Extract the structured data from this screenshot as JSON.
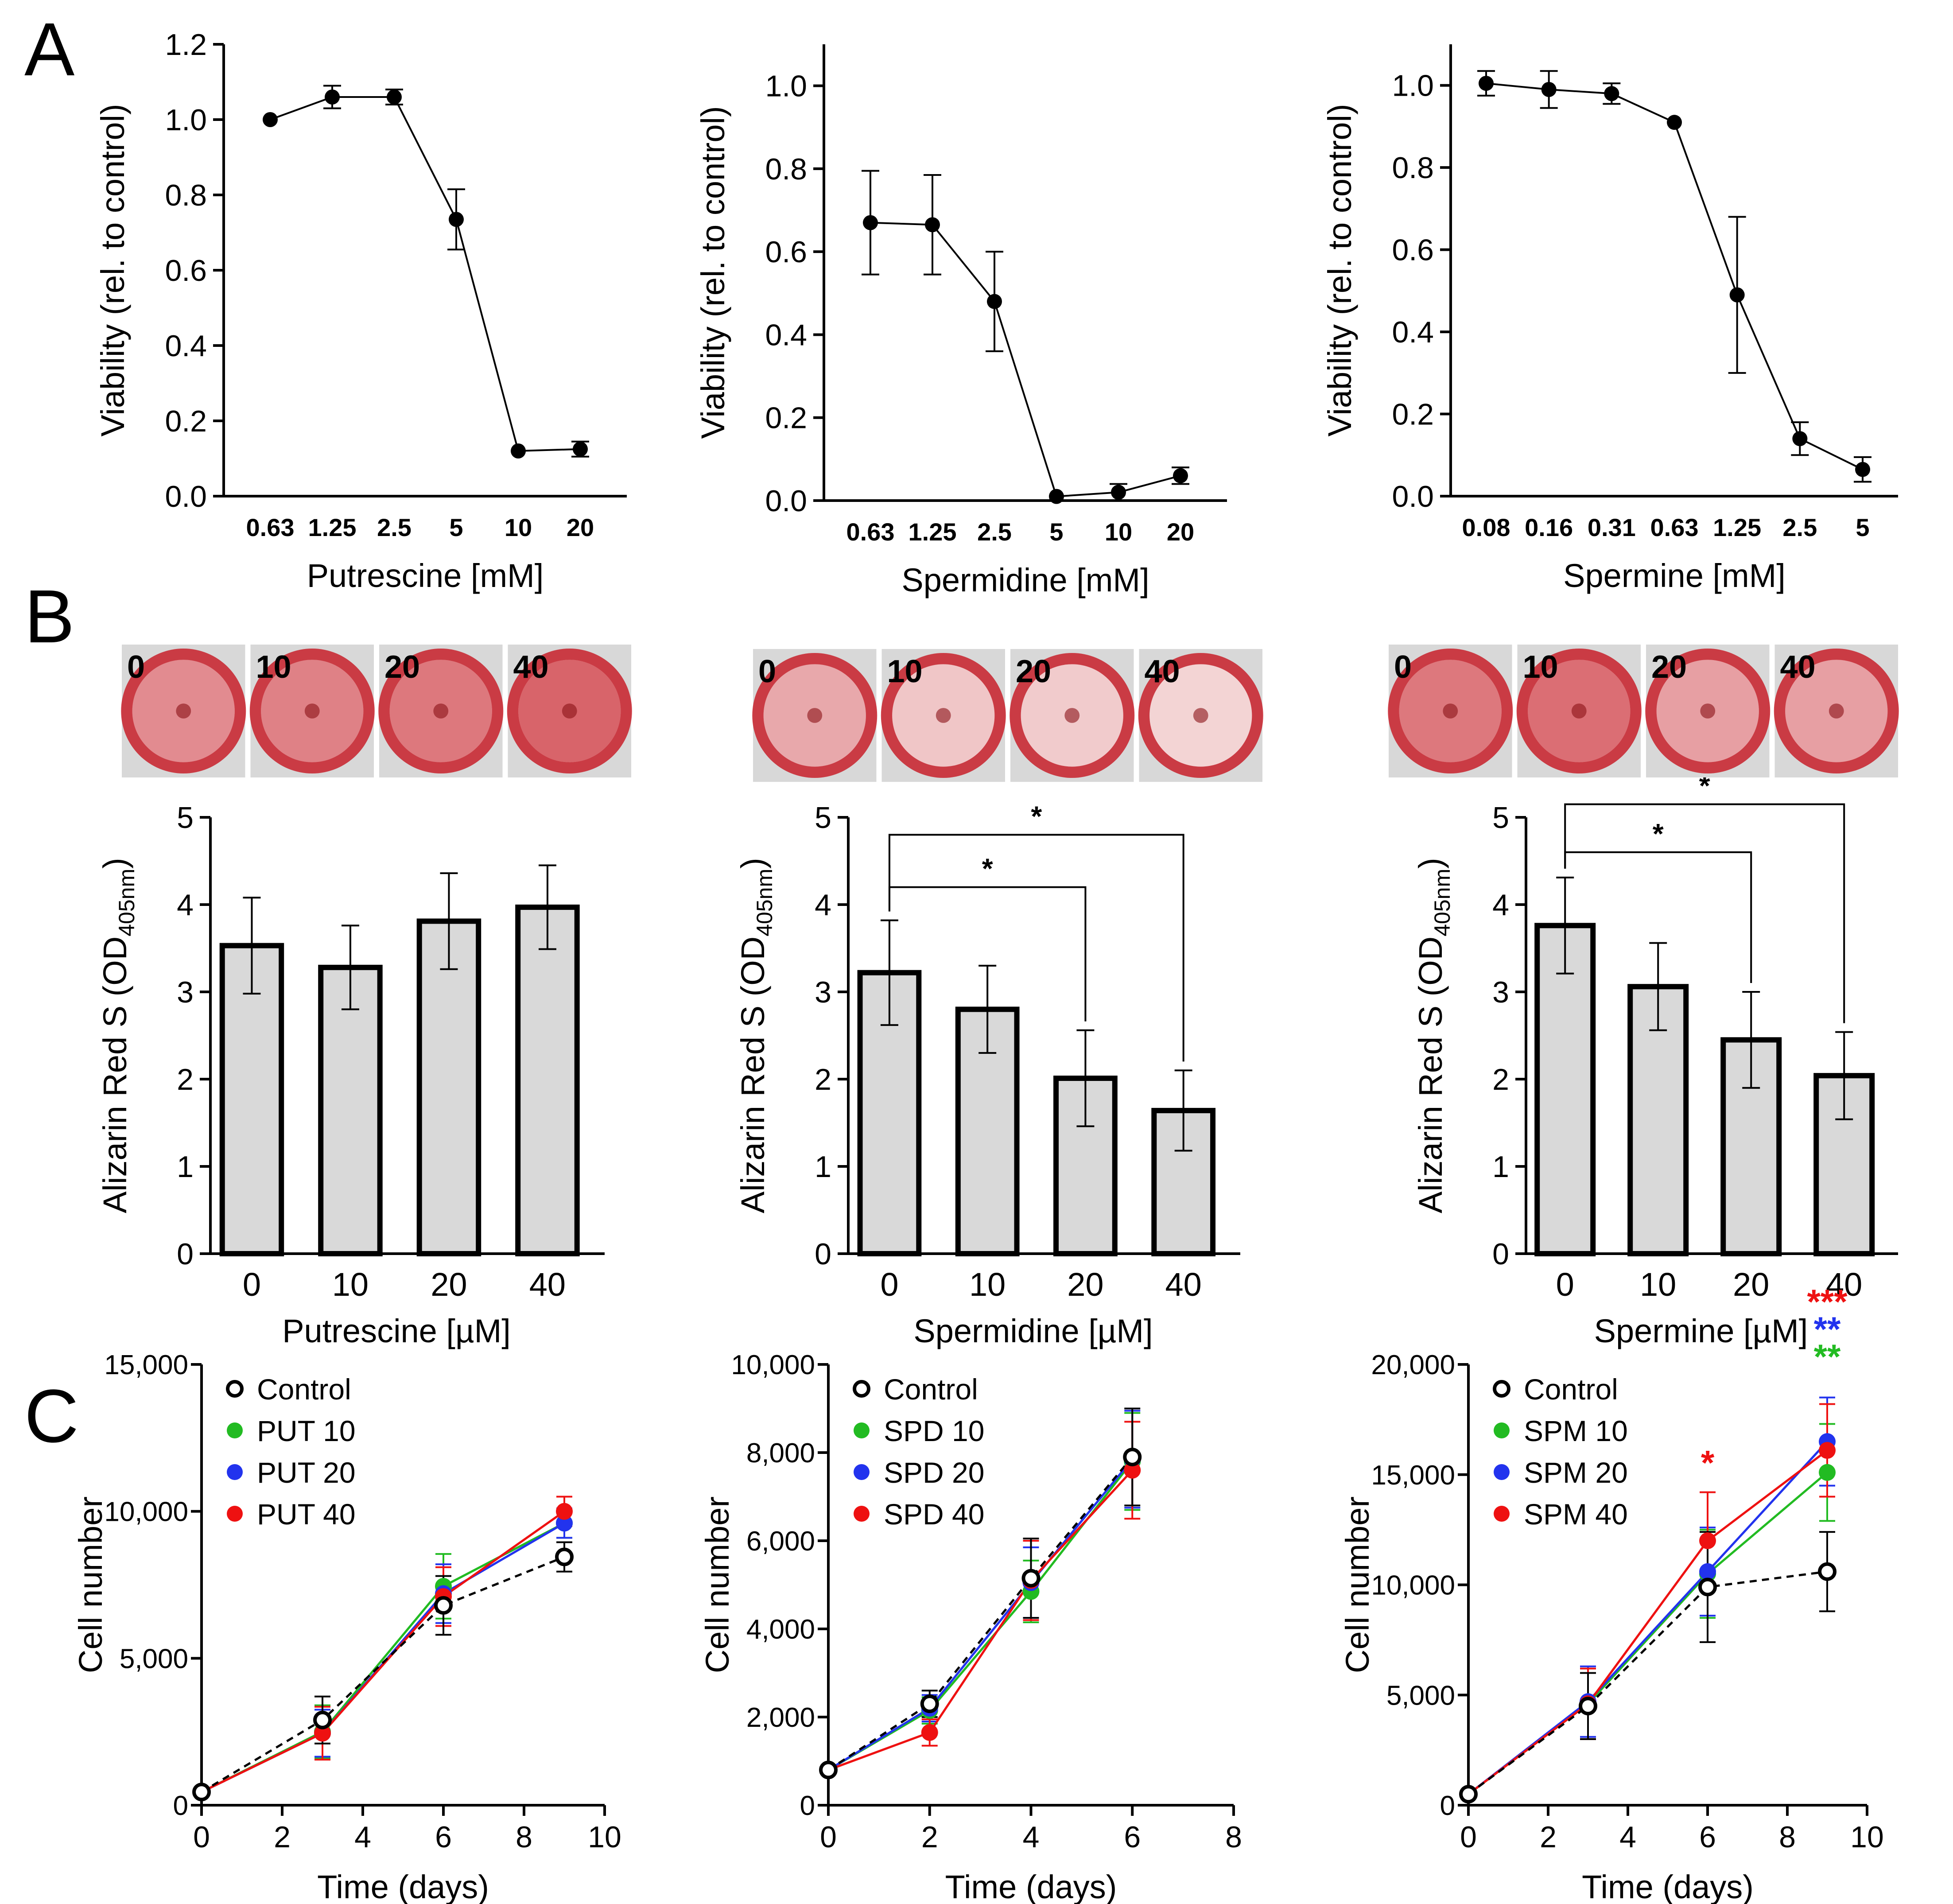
{
  "panel_labels": [
    "A",
    "B",
    "C"
  ],
  "colors": {
    "line": "#000000",
    "bar_fill": "#d9d9d9",
    "put_control": "#000000",
    "series_10": "#22bb22",
    "series_20": "#2233ee",
    "series_40": "#ee1111",
    "dish_stain": "#c8202a"
  },
  "chart_data": [
    {
      "id": "A1",
      "type": "line",
      "categories": [
        "0.63",
        "1.25",
        "2.5",
        "5",
        "10",
        "20"
      ],
      "values": [
        1.0,
        1.06,
        1.06,
        0.735,
        0.12,
        0.125
      ],
      "errors": [
        0.0,
        0.03,
        0.02,
        0.08,
        0.0,
        0.02
      ],
      "xlabel": "Putrescine [mM]",
      "ylabel": "Viability (rel. to control)",
      "ylim": [
        0,
        1.2
      ],
      "yticks": [
        "0.0",
        "0.2",
        "0.4",
        "0.6",
        "0.8",
        "1.0",
        "1.2"
      ]
    },
    {
      "id": "A2",
      "type": "line",
      "categories": [
        "0.63",
        "1.25",
        "2.5",
        "5",
        "10",
        "20"
      ],
      "values": [
        0.67,
        0.665,
        0.48,
        0.01,
        0.02,
        0.06
      ],
      "errors": [
        0.125,
        0.12,
        0.12,
        0.0,
        0.02,
        0.02
      ],
      "xlabel": "Spermidine [mM]",
      "ylabel": "Viability (rel. to control)",
      "ylim": [
        0,
        1.1
      ],
      "yticks": [
        "0.0",
        "0.2",
        "0.4",
        "0.6",
        "0.8",
        "1.0"
      ]
    },
    {
      "id": "A3",
      "type": "line",
      "categories": [
        "0.08",
        "0.16",
        "0.31",
        "0.63",
        "1.25",
        "2.5",
        "5"
      ],
      "values": [
        1.005,
        0.99,
        0.98,
        0.91,
        0.49,
        0.14,
        0.065
      ],
      "errors": [
        0.03,
        0.045,
        0.025,
        0.0,
        0.19,
        0.04,
        0.03
      ],
      "xlabel": "Spermine [mM]",
      "ylabel": "Viability (rel. to control)",
      "ylim": [
        0,
        1.1
      ],
      "yticks": [
        "0.0",
        "0.2",
        "0.4",
        "0.6",
        "0.8",
        "1.0"
      ]
    },
    {
      "id": "B1",
      "type": "bar",
      "categories": [
        "0",
        "10",
        "20",
        "40"
      ],
      "values": [
        3.53,
        3.28,
        3.81,
        3.97
      ],
      "errors": [
        0.55,
        0.48,
        0.55,
        0.48
      ],
      "xlabel": "Putrescine [µM]",
      "ylabel_parts": [
        "Alizarin  Red S (OD",
        "405nm",
        ")"
      ],
      "ylim": [
        0,
        5
      ],
      "yticks": [
        "0",
        "1",
        "2",
        "3",
        "4",
        "5"
      ],
      "brackets": [],
      "dish_labels": [
        "0",
        "10",
        "20",
        "40"
      ],
      "dish_stain_levels": [
        0.45,
        0.5,
        0.55,
        0.65
      ]
    },
    {
      "id": "B2",
      "type": "bar",
      "categories": [
        "0",
        "10",
        "20",
        "40"
      ],
      "values": [
        3.22,
        2.8,
        2.01,
        1.64
      ],
      "errors": [
        0.6,
        0.5,
        0.55,
        0.46
      ],
      "xlabel": "Spermidine [µM]",
      "ylabel_parts": [
        "Alizarin  Red S (OD",
        "405nm",
        ")"
      ],
      "ylim": [
        0,
        5
      ],
      "yticks": [
        "0",
        "1",
        "2",
        "3",
        "4",
        "5"
      ],
      "brackets": [
        {
          "from": 0,
          "to": 2,
          "label": "*",
          "level": 4.2
        },
        {
          "from": 0,
          "to": 3,
          "label": "*",
          "level": 4.8
        }
      ],
      "dish_labels": [
        "0",
        "10",
        "20",
        "40"
      ],
      "dish_stain_levels": [
        0.3,
        0.15,
        0.12,
        0.08
      ]
    },
    {
      "id": "B3",
      "type": "bar",
      "categories": [
        "0",
        "10",
        "20",
        "40"
      ],
      "values": [
        3.76,
        3.06,
        2.45,
        2.04
      ],
      "errors": [
        0.55,
        0.5,
        0.55,
        0.5
      ],
      "xlabel": "Spermine [µM]",
      "ylabel_parts": [
        "Alizarin  Red S (OD",
        "405nm",
        ")"
      ],
      "ylim": [
        0,
        5
      ],
      "yticks": [
        "0",
        "1",
        "2",
        "3",
        "4",
        "5"
      ],
      "brackets": [
        {
          "from": 0,
          "to": 2,
          "label": "*",
          "level": 4.6
        },
        {
          "from": 0,
          "to": 3,
          "label": "*",
          "level": 5.15
        }
      ],
      "dish_labels": [
        "0",
        "10",
        "20",
        "40"
      ],
      "dish_stain_levels": [
        0.55,
        0.6,
        0.35,
        0.35
      ]
    },
    {
      "id": "C1",
      "type": "line",
      "x": [
        0,
        3,
        6,
        9
      ],
      "series": [
        {
          "name": "Control",
          "values": [
            450,
            2900,
            6800,
            8450
          ],
          "errors": [
            100,
            800,
            1000,
            500
          ]
        },
        {
          "name": "PUT 10",
          "values": [
            450,
            2500,
            7450,
            9600
          ],
          "errors": [
            100,
            900,
            1100,
            500
          ]
        },
        {
          "name": "PUT 20",
          "values": [
            450,
            2450,
            7200,
            9600
          ],
          "errors": [
            100,
            800,
            1000,
            500
          ]
        },
        {
          "name": "PUT 40",
          "values": [
            450,
            2450,
            7100,
            10000
          ],
          "errors": [
            100,
            900,
            1000,
            500
          ]
        }
      ],
      "xlabel": "Time (days)",
      "ylabel": "Cell number",
      "xlim": [
        0,
        10
      ],
      "xticks": [
        "0",
        "2",
        "4",
        "6",
        "8",
        "10"
      ],
      "ylim": [
        0,
        15000
      ],
      "yticks": [
        "0",
        "5,000",
        "10,000",
        "15,000"
      ],
      "annotations": []
    },
    {
      "id": "C2",
      "type": "line",
      "x": [
        0,
        2,
        4,
        6
      ],
      "series": [
        {
          "name": "Control",
          "values": [
            800,
            2300,
            5150,
            7900
          ],
          "errors": [
            80,
            300,
            900,
            1100
          ]
        },
        {
          "name": "SPD 10",
          "values": [
            800,
            2150,
            4850,
            7800
          ],
          "errors": [
            80,
            300,
            700,
            1100
          ]
        },
        {
          "name": "SPD 20",
          "values": [
            800,
            2200,
            5050,
            7850
          ],
          "errors": [
            80,
            300,
            800,
            1100
          ]
        },
        {
          "name": "SPD 40",
          "values": [
            800,
            1650,
            5100,
            7600
          ],
          "errors": [
            80,
            300,
            900,
            1100
          ]
        }
      ],
      "xlabel": "Time (days)",
      "ylabel": "Cell number",
      "xlim": [
        0,
        8
      ],
      "xticks": [
        "0",
        "2",
        "4",
        "6",
        "8"
      ],
      "ylim": [
        0,
        10000
      ],
      "yticks": [
        "0",
        "2,000",
        "4,000",
        "6,000",
        "8,000",
        "10,000"
      ],
      "annotations": []
    },
    {
      "id": "C3",
      "type": "line",
      "x": [
        0,
        3,
        6,
        9
      ],
      "series": [
        {
          "name": "Control",
          "values": [
            500,
            4500,
            9900,
            10600
          ],
          "errors": [
            100,
            1500,
            2500,
            1800
          ]
        },
        {
          "name": "SPM 10",
          "values": [
            500,
            4600,
            10500,
            15100
          ],
          "errors": [
            100,
            1600,
            2000,
            2200
          ]
        },
        {
          "name": "SPM 20",
          "values": [
            500,
            4700,
            10600,
            16500
          ],
          "errors": [
            100,
            1600,
            2000,
            2000
          ]
        },
        {
          "name": "SPM 40",
          "values": [
            500,
            4600,
            12000,
            16100
          ],
          "errors": [
            100,
            1600,
            2200,
            2100
          ]
        }
      ],
      "xlabel": "Time (days)",
      "ylabel": "Cell number",
      "xlim": [
        0,
        10
      ],
      "xticks": [
        "0",
        "2",
        "4",
        "6",
        "8",
        "10"
      ],
      "ylim": [
        0,
        20000
      ],
      "yticks": [
        "0",
        "5,000",
        "10,000",
        "15,000",
        "20,000"
      ],
      "annotations": [
        {
          "x": 6,
          "series": "SPM 40",
          "label": "*"
        },
        {
          "x": 9,
          "series": "SPM 40",
          "label": "***"
        },
        {
          "x": 9,
          "series": "SPM 20",
          "label": "**"
        },
        {
          "x": 9,
          "series": "SPM 10",
          "label": "**"
        }
      ]
    }
  ]
}
